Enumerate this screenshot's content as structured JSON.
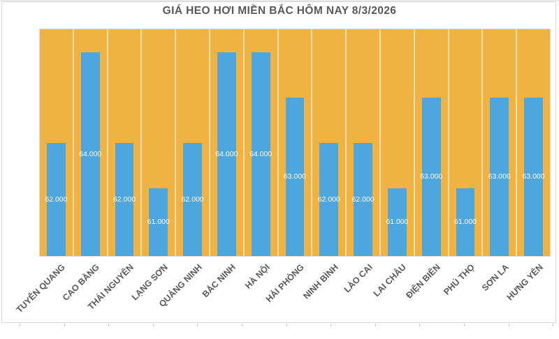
{
  "title": "GIÁ HEO HƠI MIỀN BẮC HÔM NAY 8/3/2026",
  "chart_data": {
    "type": "bar",
    "title": "GIÁ HEO HƠI MIỀN BẮC HÔM NAY 8/3/2026",
    "categories": [
      "TUYÊN QUANG",
      "CAO BẰNG",
      "THÁI NGUYÊN",
      "LẠNG SƠN",
      "QUẢNG NINH",
      "BẮC NINH",
      "HÀ NỘI",
      "HẢI PHÒNG",
      "NINH BÌNH",
      "LÀO CAI",
      "LAI CHÂU",
      "ĐIỆN BIÊN",
      "PHÚ THỌ",
      "SƠN LA",
      "HƯNG YÊN"
    ],
    "values": [
      62000,
      64000,
      62000,
      61000,
      62000,
      64000,
      64000,
      63000,
      62000,
      62000,
      61000,
      63000,
      61000,
      63000,
      63000
    ],
    "value_labels": [
      "62.000",
      "64.000",
      "62.000",
      "61.000",
      "62.000",
      "64.000",
      "64.000",
      "63.000",
      "62.000",
      "62.000",
      "61.000",
      "63.000",
      "61.000",
      "63.000",
      "63.000"
    ],
    "xlabel": "",
    "ylabel": "",
    "ylim": [
      59500,
      64500
    ],
    "legend": false,
    "grid": "vertical-category-separators",
    "data_label_position": "inside-center",
    "category_label_rotation_deg": 45,
    "colors": {
      "bar": "#4EA6DF",
      "plot_background": "#F0B240",
      "data_label_text": "#FFFFFF",
      "title_text": "#595959",
      "category_label_text": "#595959",
      "category_separator": "#F7E3B3",
      "chart_border": "#D9D9D9"
    }
  }
}
